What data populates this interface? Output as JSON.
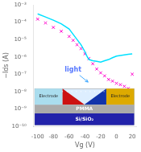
{
  "chart_data": {
    "type": "line",
    "log": "y",
    "xlabel": "Vg (V)",
    "ylabel": "−Ids (A)",
    "xlim": [
      -105,
      25
    ],
    "xticks": [
      -100,
      -80,
      -60,
      -40,
      -20,
      0,
      20
    ],
    "ylim": [
      1e-10,
      0.001
    ],
    "yticks": [
      {
        "value": 1e-10,
        "label": "10⁻¹⁰"
      },
      {
        "value": 1e-09,
        "label": "10⁻⁹"
      },
      {
        "value": 1e-08,
        "label": "10⁻⁸"
      },
      {
        "value": 1e-07,
        "label": "10⁻⁷"
      },
      {
        "value": 1e-06,
        "label": "10⁻⁶"
      },
      {
        "value": 1e-05,
        "label": "10⁻⁵"
      },
      {
        "value": 0.0001,
        "label": "10⁻⁴"
      },
      {
        "value": 0.001,
        "label": "10⁻³"
      }
    ],
    "grid": false,
    "series": [
      {
        "type": "line",
        "color": "#00e0ff",
        "line_style": "solid",
        "marker": "none",
        "x": [
          -100,
          -90,
          -80,
          -70,
          -60,
          -55,
          -50,
          -45,
          -40,
          -37,
          -35,
          -30,
          -25,
          -20,
          -15,
          -10,
          -5,
          0,
          5,
          10,
          15,
          20
        ],
        "values": [
          0.0003,
          0.0002,
          0.00013,
          8e-05,
          4e-05,
          2e-05,
          1e-05,
          5e-06,
          2e-06,
          1e-06,
          7e-07,
          6e-07,
          5.5e-07,
          5e-07,
          6e-07,
          7e-07,
          9e-07,
          1.1e-06,
          1.2e-06,
          1.3e-06,
          1.4e-06,
          1.5e-06
        ]
      },
      {
        "type": "scatter",
        "color": "#ff00cc",
        "line_style": "none",
        "marker": "x",
        "x": [
          -100,
          -90,
          -80,
          -70,
          -60,
          -55,
          -50,
          -45,
          -40,
          -35,
          -30,
          -25,
          -20,
          -15,
          -10,
          -5,
          0,
          5,
          10,
          15,
          20
        ],
        "values": [
          0.00015,
          9e-05,
          5e-05,
          3e-05,
          1.5e-05,
          9e-06,
          5e-06,
          3e-06,
          1.5e-06,
          8e-07,
          4e-07,
          2e-07,
          1.2e-07,
          8e-08,
          5e-08,
          4e-08,
          3e-08,
          2.5e-08,
          2e-08,
          1.5e-08,
          1e-07
        ]
      }
    ],
    "annotations": [
      {
        "text": "Si/SiO₂"
      },
      {
        "text": "PMMA"
      },
      {
        "text": "Electrode"
      },
      {
        "text": "Electrode"
      },
      {
        "text": "light",
        "x": -55,
        "y": 1.2e-07,
        "arrow_x": -36,
        "arrow_y": 3.5e-08,
        "color": "#5577ff"
      }
    ]
  }
}
